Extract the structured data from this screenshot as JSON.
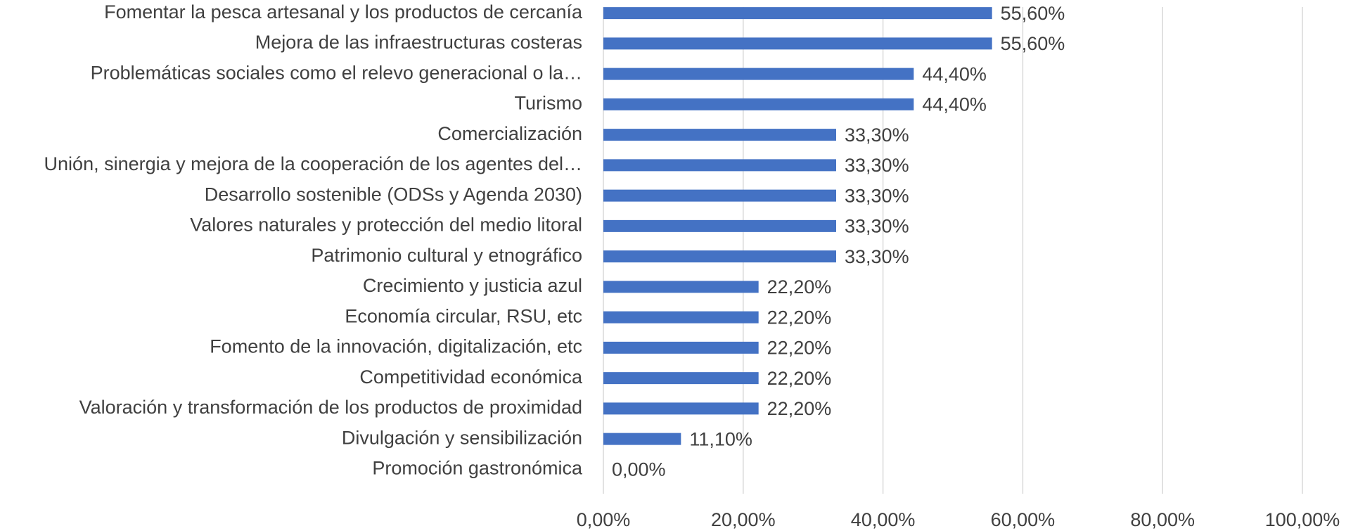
{
  "chart_data": {
    "type": "barh",
    "categories": [
      "Fomentar la pesca artesanal y los productos de cercanía",
      "Mejora de las infraestructuras costeras",
      "Problemáticas sociales como el relevo generacional o la…",
      "Turismo",
      "Comercialización",
      "Unión, sinergia y mejora de la cooperación de los agentes del…",
      "Desarrollo sostenible (ODSs y Agenda 2030)",
      "Valores naturales y protección del medio litoral",
      "Patrimonio cultural y etnográfico",
      "Crecimiento y justicia azul",
      "Economía circular, RSU, etc",
      "Fomento de la innovación, digitalización, etc",
      "Competitividad económica",
      "Valoración y transformación de los productos de proximidad",
      "Divulgación y sensibilización",
      "Promoción gastronómica"
    ],
    "values": [
      55.6,
      55.6,
      44.4,
      44.4,
      33.3,
      33.3,
      33.3,
      33.3,
      33.3,
      22.2,
      22.2,
      22.2,
      22.2,
      22.2,
      11.1,
      0
    ],
    "value_labels": [
      "55,60%",
      "55,60%",
      "44,40%",
      "44,40%",
      "33,30%",
      "33,30%",
      "33,30%",
      "33,30%",
      "33,30%",
      "22,20%",
      "22,20%",
      "22,20%",
      "22,20%",
      "22,20%",
      "11,10%",
      "0,00%"
    ],
    "color": "#4472c4",
    "xlim": [
      0,
      100
    ],
    "xticks": [
      {
        "value": 0,
        "label": "0,00%"
      },
      {
        "value": 20,
        "label": "20,00%"
      },
      {
        "value": 40,
        "label": "40,00%"
      },
      {
        "value": 60,
        "label": "60,00%"
      },
      {
        "value": 80,
        "label": "80,00%"
      },
      {
        "value": 100,
        "label": "100,00%"
      }
    ],
    "grid": true
  }
}
